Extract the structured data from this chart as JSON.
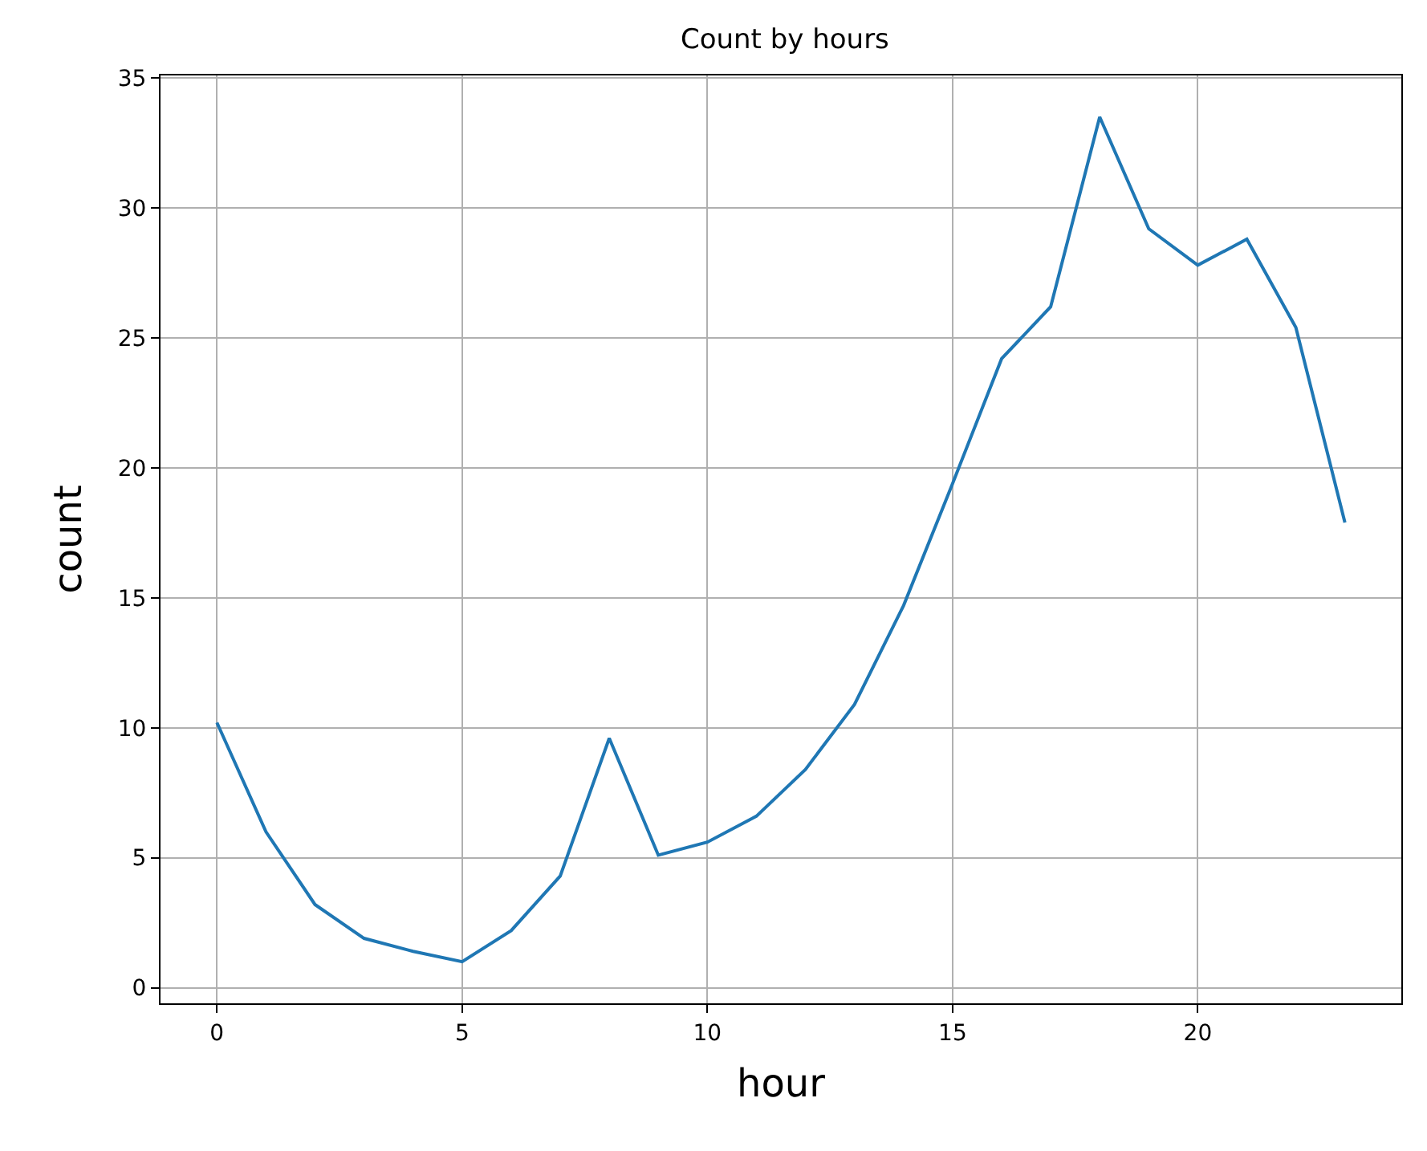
{
  "chart_data": {
    "type": "line",
    "title": "Count by hours",
    "xlabel": "hour",
    "ylabel": "count",
    "x": [
      0,
      1,
      2,
      3,
      4,
      5,
      6,
      7,
      8,
      9,
      10,
      11,
      12,
      13,
      14,
      15,
      16,
      17,
      18,
      19,
      20,
      21,
      22,
      23
    ],
    "series": [
      {
        "color": "#1f77b4",
        "values": [
          10.2,
          6.0,
          3.2,
          1.9,
          1.4,
          1.0,
          2.2,
          4.3,
          9.6,
          5.1,
          5.6,
          6.6,
          8.4,
          10.9,
          14.7,
          19.4,
          24.2,
          26.2,
          33.5,
          29.2,
          27.8,
          28.8,
          25.4,
          17.9
        ]
      }
    ],
    "xlim": [
      -1.15,
      24.15
    ],
    "xticks": [
      0,
      5,
      10,
      15,
      20
    ],
    "ylim": [
      -0.6,
      35.1
    ],
    "yticks": [
      0,
      5,
      10,
      15,
      20,
      25,
      30,
      35
    ],
    "grid": true,
    "marker": "none",
    "line_style": "solid"
  }
}
